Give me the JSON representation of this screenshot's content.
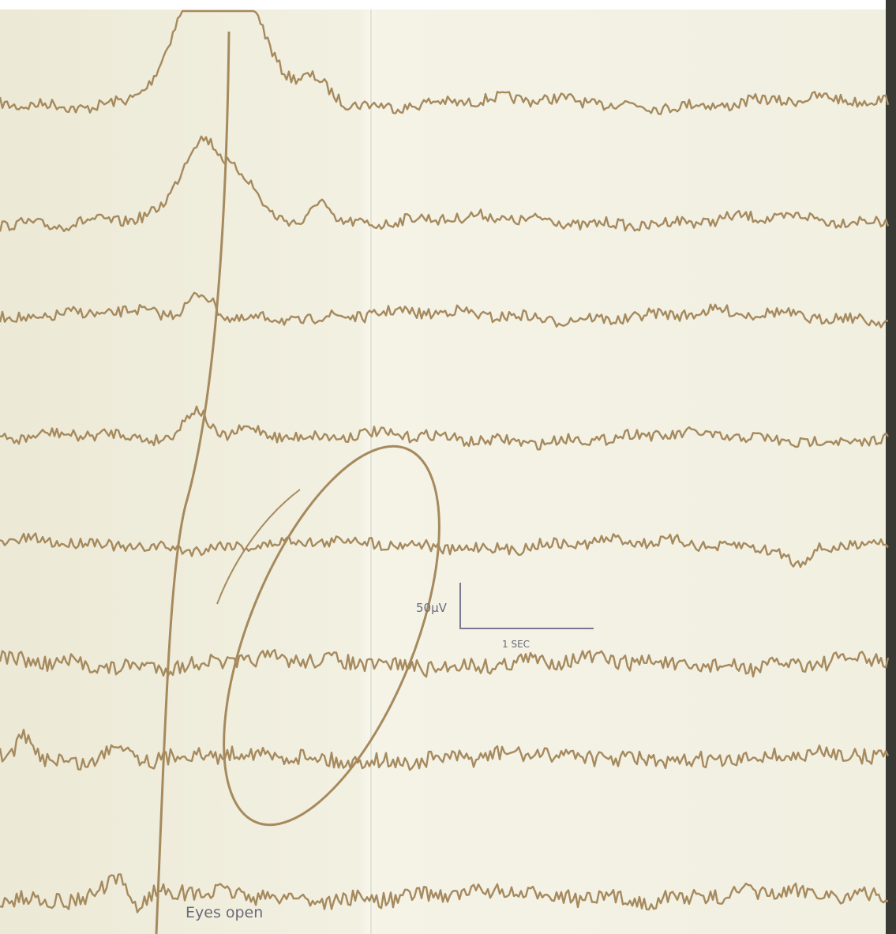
{
  "scale_bar": {
    "amplitude": "50µV",
    "time": "1 SEC"
  },
  "annotation": "Eyes open"
}
